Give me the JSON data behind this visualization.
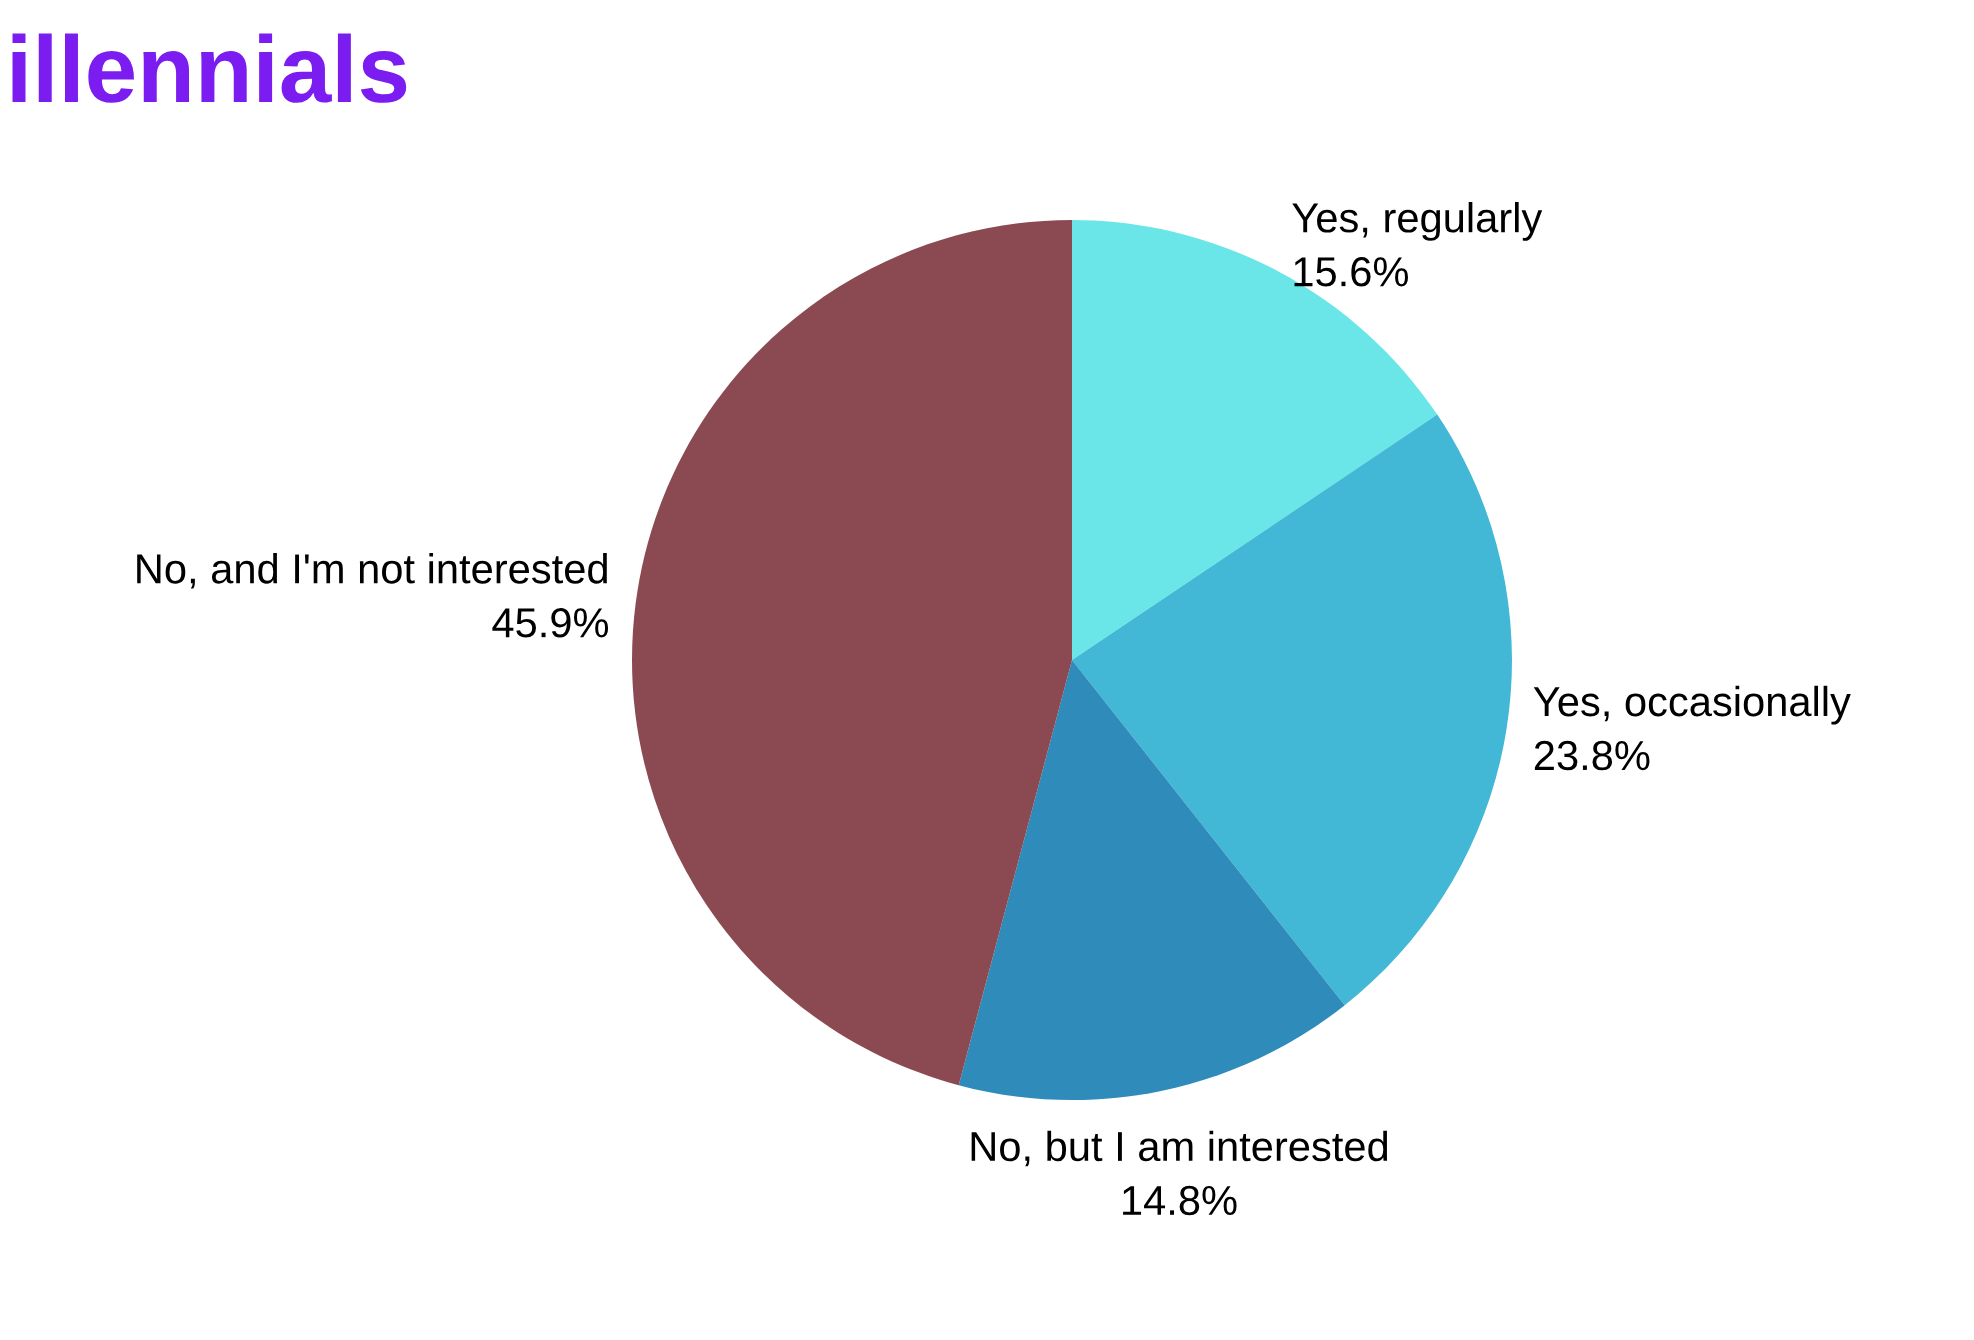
{
  "chart_data": {
    "type": "pie",
    "title": "illennials",
    "categories": [
      "Yes, regularly",
      "Yes, occasionally",
      "No, but I am interested",
      "No, and I'm not interested"
    ],
    "values": [
      15.6,
      23.8,
      14.8,
      45.9
    ],
    "value_labels": [
      "15.6%",
      "23.8%",
      "14.8%",
      "45.9%"
    ],
    "colors": [
      "#6ae6e8",
      "#42b8d6",
      "#2e8bba",
      "#8b4a52"
    ]
  }
}
